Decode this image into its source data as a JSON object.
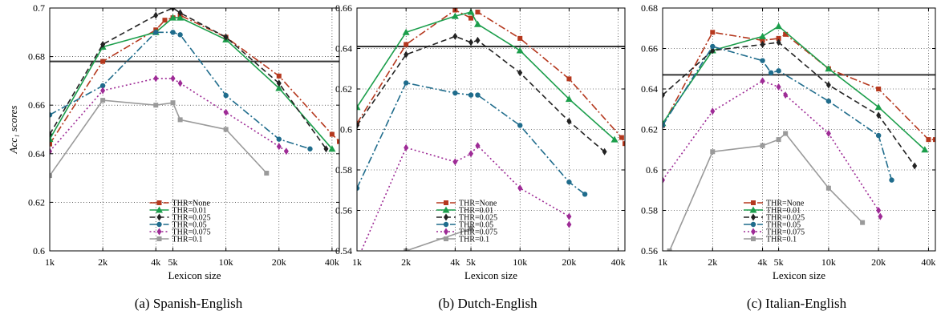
{
  "chart_data": [
    {
      "type": "line",
      "caption": "(a) Spanish-English",
      "xlabel": "Lexicon size",
      "ylabel": "Acc₁ scores",
      "x_scale": "log",
      "xlim": [
        1000,
        44000
      ],
      "ylim": [
        0.6,
        0.7
      ],
      "x_ticks": [
        1000,
        2000,
        4000,
        5000,
        10000,
        20000,
        40000
      ],
      "x_tick_labels": [
        "1k",
        "2k",
        "4k",
        "5k",
        "10k",
        "20k",
        "40k"
      ],
      "y_ticks": [
        0.6,
        0.62,
        0.64,
        0.66,
        0.68,
        0.7
      ],
      "y_tick_labels": [
        "0.6",
        "0.62",
        "0.64",
        "0.66",
        "0.68",
        "0.7"
      ],
      "baseline": 0.678,
      "legend_position": "bottom-center",
      "series": [
        {
          "name": "THR=None",
          "color": "#b5381e",
          "dash": "9,3,2,3",
          "marker": "square",
          "x": [
            1000,
            2000,
            4000,
            4500,
            5000,
            5500,
            10000,
            20000,
            40000,
            44000
          ],
          "y": [
            0.644,
            0.678,
            0.691,
            0.695,
            0.696,
            0.697,
            0.688,
            0.672,
            0.648,
            0.645
          ]
        },
        {
          "name": "THR=0.01",
          "color": "#1b9e4b",
          "dash": "",
          "marker": "triangle",
          "x": [
            1000,
            2000,
            4000,
            5000,
            5500,
            10000,
            20000,
            40000
          ],
          "y": [
            0.646,
            0.684,
            0.69,
            0.696,
            0.696,
            0.687,
            0.667,
            0.642
          ]
        },
        {
          "name": "THR=0.025",
          "color": "#222222",
          "dash": "7,4",
          "marker": "diamond",
          "x": [
            1000,
            2000,
            4000,
            5000,
            5500,
            10000,
            20000,
            37000
          ],
          "y": [
            0.648,
            0.685,
            0.697,
            0.7,
            0.698,
            0.688,
            0.669,
            0.642
          ]
        },
        {
          "name": "THR=0.05",
          "color": "#1f6c8c",
          "dash": "9,3,2,3",
          "marker": "circle",
          "x": [
            1000,
            2000,
            4000,
            5000,
            5500,
            10000,
            20000,
            30000
          ],
          "y": [
            0.656,
            0.668,
            0.69,
            0.69,
            0.689,
            0.664,
            0.646,
            0.642
          ]
        },
        {
          "name": "THR=0.075",
          "color": "#9e2b96",
          "dash": "2,3",
          "marker": "diamond",
          "x": [
            1000,
            2000,
            4000,
            5000,
            5500,
            10000,
            20000,
            22000
          ],
          "y": [
            0.641,
            0.666,
            0.671,
            0.671,
            0.669,
            0.657,
            0.643,
            0.641
          ]
        },
        {
          "name": "THR=0.1",
          "color": "#9a9a9a",
          "dash": "",
          "marker": "square",
          "x": [
            1000,
            2000,
            4000,
            5000,
            5500,
            10000,
            17000
          ],
          "y": [
            0.631,
            0.662,
            0.66,
            0.661,
            0.654,
            0.65,
            0.632
          ]
        }
      ]
    },
    {
      "type": "line",
      "caption": "(b) Dutch-English",
      "xlabel": "Lexicon size",
      "ylabel": "",
      "x_scale": "log",
      "xlim": [
        1000,
        44000
      ],
      "ylim": [
        0.54,
        0.66
      ],
      "x_ticks": [
        1000,
        2000,
        4000,
        5000,
        10000,
        20000,
        40000
      ],
      "x_tick_labels": [
        "1k",
        "2k",
        "4k",
        "5k",
        "10k",
        "20k",
        "40k"
      ],
      "y_ticks": [
        0.54,
        0.56,
        0.58,
        0.6,
        0.62,
        0.64,
        0.66
      ],
      "y_tick_labels": [
        "0.54",
        "0.56",
        "0.58",
        "0.6",
        "0.62",
        "0.64",
        "0.66"
      ],
      "baseline": 0.641,
      "legend_position": "bottom-center",
      "series": [
        {
          "name": "THR=None",
          "color": "#b5381e",
          "dash": "9,3,2,3",
          "marker": "square",
          "x": [
            1000,
            2000,
            4000,
            5000,
            5500,
            10000,
            20000,
            42000,
            44000
          ],
          "y": [
            0.603,
            0.642,
            0.659,
            0.655,
            0.658,
            0.645,
            0.625,
            0.596,
            0.593
          ]
        },
        {
          "name": "THR=0.01",
          "color": "#1b9e4b",
          "dash": "",
          "marker": "triangle",
          "x": [
            1000,
            2000,
            4000,
            5000,
            5500,
            10000,
            20000,
            38000
          ],
          "y": [
            0.611,
            0.648,
            0.656,
            0.658,
            0.652,
            0.639,
            0.615,
            0.595
          ]
        },
        {
          "name": "THR=0.025",
          "color": "#222222",
          "dash": "7,4",
          "marker": "diamond",
          "x": [
            1000,
            2000,
            4000,
            5000,
            5500,
            10000,
            20000,
            33000
          ],
          "y": [
            0.602,
            0.637,
            0.646,
            0.643,
            0.644,
            0.628,
            0.604,
            0.589
          ]
        },
        {
          "name": "THR=0.05",
          "color": "#1f6c8c",
          "dash": "9,3,2,3",
          "marker": "circle",
          "x": [
            1000,
            2000,
            4000,
            5000,
            5500,
            10000,
            20000,
            25000
          ],
          "y": [
            0.571,
            0.623,
            0.618,
            0.617,
            0.617,
            0.602,
            0.574,
            0.568
          ]
        },
        {
          "name": "THR=0.075",
          "color": "#9e2b96",
          "dash": "2,3",
          "marker": "diamond",
          "x": [
            1000,
            2000,
            4000,
            5000,
            5500,
            10000,
            20000,
            20000
          ],
          "y": [
            0.535,
            0.591,
            0.584,
            0.588,
            0.592,
            0.571,
            0.557,
            0.553
          ]
        },
        {
          "name": "THR=0.1",
          "color": "#9a9a9a",
          "dash": "",
          "marker": "square",
          "x": [
            2000,
            5000
          ],
          "y": [
            0.54,
            0.551
          ]
        }
      ]
    },
    {
      "type": "line",
      "caption": "(c) Italian-English",
      "xlabel": "Lexicon size",
      "ylabel": "",
      "x_scale": "log",
      "xlim": [
        1000,
        44000
      ],
      "ylim": [
        0.56,
        0.68
      ],
      "x_ticks": [
        1000,
        2000,
        4000,
        5000,
        10000,
        20000,
        40000
      ],
      "x_tick_labels": [
        "1k",
        "2k",
        "4k",
        "5k",
        "10k",
        "20k",
        "40k"
      ],
      "y_ticks": [
        0.56,
        0.58,
        0.6,
        0.62,
        0.64,
        0.66,
        0.68
      ],
      "y_tick_labels": [
        "0.56",
        "0.58",
        "0.6",
        "0.62",
        "0.64",
        "0.66",
        "0.68"
      ],
      "baseline": 0.647,
      "legend_position": "bottom-center",
      "series": [
        {
          "name": "THR=None",
          "color": "#b5381e",
          "dash": "9,3,2,3",
          "marker": "square",
          "x": [
            1000,
            2000,
            4000,
            5000,
            5500,
            10000,
            20000,
            40000,
            44000
          ],
          "y": [
            0.622,
            0.668,
            0.664,
            0.665,
            0.667,
            0.65,
            0.64,
            0.615,
            0.615
          ]
        },
        {
          "name": "THR=0.01",
          "color": "#1b9e4b",
          "dash": "",
          "marker": "triangle",
          "x": [
            1000,
            2000,
            4000,
            5000,
            10000,
            20000,
            38000
          ],
          "y": [
            0.623,
            0.659,
            0.666,
            0.671,
            0.65,
            0.631,
            0.61
          ]
        },
        {
          "name": "THR=0.025",
          "color": "#222222",
          "dash": "7,4",
          "marker": "diamond",
          "x": [
            1000,
            2000,
            4000,
            5000,
            10000,
            20000,
            33000
          ],
          "y": [
            0.637,
            0.659,
            0.662,
            0.663,
            0.642,
            0.627,
            0.602
          ]
        },
        {
          "name": "THR=0.05",
          "color": "#1f6c8c",
          "dash": "9,3,2,3",
          "marker": "circle",
          "x": [
            1000,
            2000,
            4000,
            4500,
            5000,
            10000,
            20000,
            24000
          ],
          "y": [
            0.622,
            0.661,
            0.654,
            0.648,
            0.649,
            0.634,
            0.617,
            0.595
          ]
        },
        {
          "name": "THR=0.075",
          "color": "#9e2b96",
          "dash": "2,3",
          "marker": "diamond",
          "x": [
            1000,
            2000,
            4000,
            5000,
            5500,
            10000,
            20000,
            20500
          ],
          "y": [
            0.595,
            0.629,
            0.644,
            0.641,
            0.637,
            0.618,
            0.58,
            0.577
          ]
        },
        {
          "name": "THR=0.1",
          "color": "#9a9a9a",
          "dash": "",
          "marker": "square",
          "x": [
            1100,
            2000,
            4000,
            5000,
            5500,
            10000,
            16000
          ],
          "y": [
            0.56,
            0.609,
            0.612,
            0.615,
            0.618,
            0.591,
            0.574
          ]
        }
      ]
    }
  ]
}
